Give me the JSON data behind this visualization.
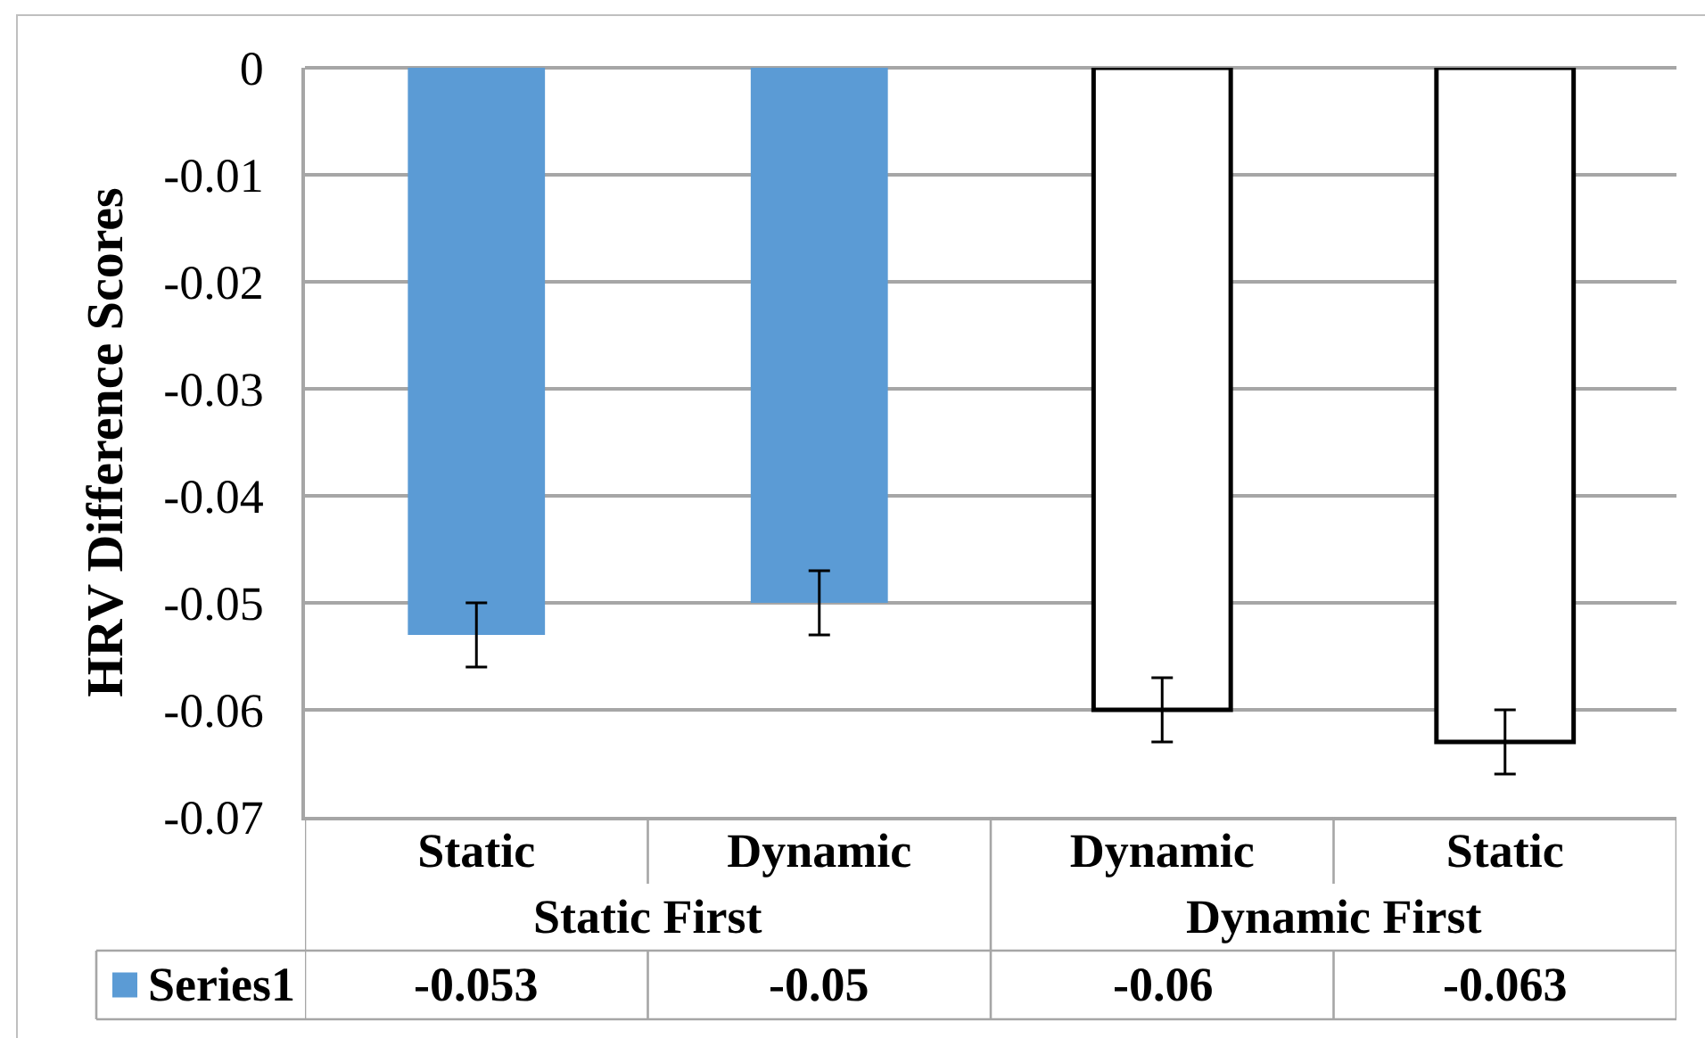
{
  "chart_data": {
    "type": "bar",
    "ylabel": "HRV Difference Scores",
    "categories": [
      "Static",
      "Dynamic",
      "Dynamic",
      "Static"
    ],
    "series": [
      {
        "name": "Series1",
        "color": "#5b9bd5",
        "colors": [
          "#5b9bd5",
          "#5b9bd5",
          "#ffffff",
          "#ffffff"
        ],
        "values": [
          -0.053,
          -0.05,
          -0.06,
          -0.063
        ],
        "errors": [
          0.003,
          0.003,
          0.003,
          0.003
        ]
      }
    ],
    "ylim": [
      -0.07,
      0
    ],
    "yticks": [
      0,
      -0.01,
      -0.02,
      -0.03,
      -0.04,
      -0.05,
      -0.06,
      -0.07
    ],
    "grid": "y",
    "legend": "bottom",
    "data_labels": true,
    "annotations": [
      "Static First",
      "Dynamic First"
    ]
  }
}
